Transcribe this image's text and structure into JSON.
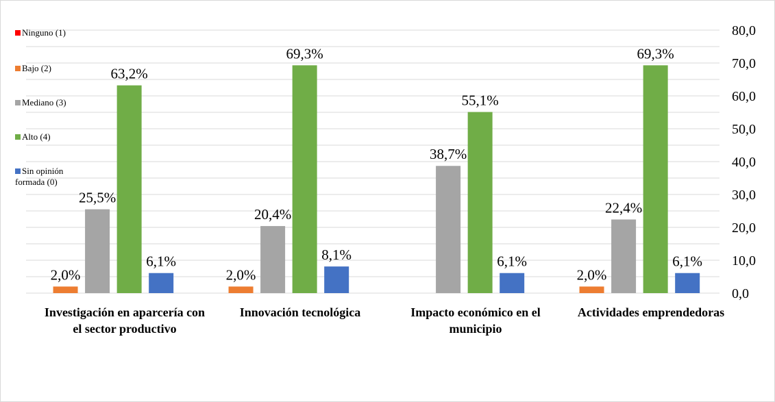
{
  "chart_data": {
    "type": "bar",
    "categories": [
      "Investigación en aparcería con el sector productivo",
      "Innovación tecnológica",
      "Impacto económico en el municipio",
      "Actividades emprendedoras"
    ],
    "series": [
      {
        "name": "Ninguno (1)",
        "color": "#ff0000",
        "values": [
          null,
          null,
          null,
          null
        ]
      },
      {
        "name": "Bajo (2)",
        "color": "#ed7d31",
        "values": [
          2.0,
          2.0,
          null,
          2.0
        ],
        "value_labels": [
          "2,0%",
          "2,0%",
          null,
          "2,0%"
        ]
      },
      {
        "name": "Mediano (3)",
        "color": "#a5a5a5",
        "values": [
          25.5,
          20.4,
          38.7,
          22.4
        ],
        "value_labels": [
          "25,5%",
          "20,4%",
          "38,7%",
          "22,4%"
        ]
      },
      {
        "name": "Alto (4)",
        "color": "#70ad47",
        "values": [
          63.2,
          69.3,
          55.1,
          69.3
        ],
        "value_labels": [
          "63,2%",
          "69,3%",
          "55,1%",
          "69,3%"
        ]
      },
      {
        "name": "Sin opinión formada (0)",
        "color": "#4472c4",
        "values": [
          6.1,
          8.1,
          6.1,
          6.1
        ],
        "value_labels": [
          "6,1%",
          "8,1%",
          "6,1%",
          "6,1%"
        ]
      }
    ],
    "ylim": [
      0,
      80
    ],
    "yticks": [
      {
        "value": 0,
        "label": "0,0"
      },
      {
        "value": 10,
        "label": "10,0"
      },
      {
        "value": 20,
        "label": "20,0"
      },
      {
        "value": 30,
        "label": "30,0"
      },
      {
        "value": 40,
        "label": "40,0"
      },
      {
        "value": 50,
        "label": "50,0"
      },
      {
        "value": 60,
        "label": "60,0"
      },
      {
        "value": 70,
        "label": "70,0"
      },
      {
        "value": 80,
        "label": "80,0"
      }
    ],
    "minor_yticks": [
      5,
      15,
      25,
      35,
      45,
      55,
      65,
      75
    ],
    "grid": true,
    "legend": "left"
  }
}
